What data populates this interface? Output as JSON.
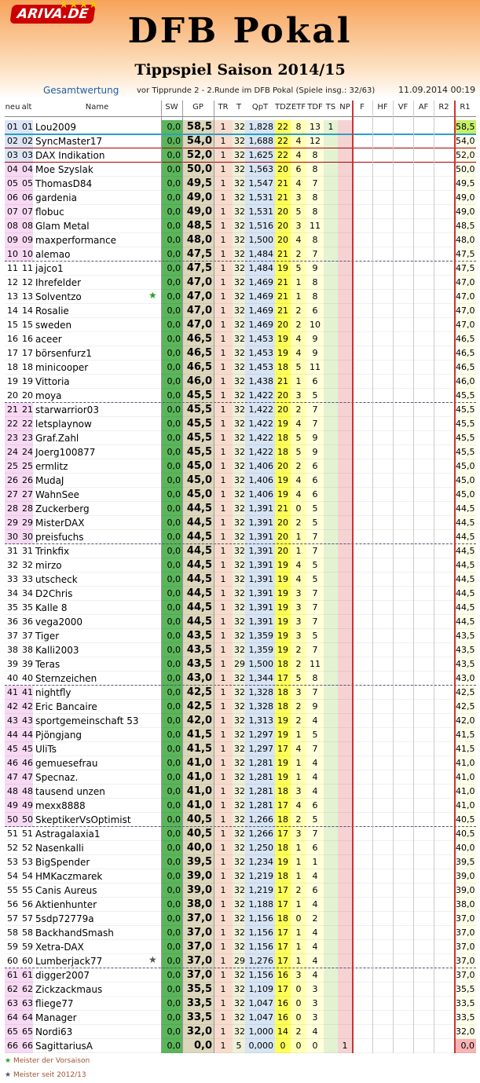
{
  "header": {
    "logo": "ARIVA.DE",
    "title": "DFB Pokal",
    "subtitle": "Tippspiel Saison 2014/15",
    "section": "Gesamtwertung",
    "round": "vor Tipprunde 2 - 2.Runde im DFB Pokal (Spiele insg.: 32/63)",
    "timestamp": "11.09.2014 00:19"
  },
  "table": {
    "columns": [
      "neu",
      "alt",
      "Name",
      "SW",
      "GP",
      "TR",
      "T",
      "QpT",
      "TDZ",
      "ETF",
      "TDF",
      "TS",
      "NP",
      "F",
      "HF",
      "VF",
      "AF",
      "R2",
      "R1"
    ],
    "rows": [
      [
        "01",
        "01",
        "Lou2009",
        "0,0",
        "58,5",
        "1",
        "32",
        "1,828",
        "22",
        "8",
        "13",
        "1",
        null,
        "58,5"
      ],
      [
        "02",
        "02",
        "SyncMaster17",
        "0,0",
        "54,0",
        "1",
        "32",
        "1,688",
        "22",
        "4",
        "12",
        null,
        null,
        "54,0"
      ],
      [
        "03",
        "03",
        "DAX Indikation",
        "0,0",
        "52,0",
        "1",
        "32",
        "1,625",
        "22",
        "4",
        "8",
        null,
        null,
        "52,0"
      ],
      [
        "04",
        "04",
        "Moe Szyslak",
        "0,0",
        "50,0",
        "1",
        "32",
        "1,563",
        "20",
        "6",
        "8",
        null,
        null,
        "50,0"
      ],
      [
        "05",
        "05",
        "ThomasD84",
        "0,0",
        "49,5",
        "1",
        "32",
        "1,547",
        "21",
        "4",
        "7",
        null,
        null,
        "49,5"
      ],
      [
        "06",
        "06",
        "gardenia",
        "0,0",
        "49,0",
        "1",
        "32",
        "1,531",
        "21",
        "3",
        "8",
        null,
        null,
        "49,0"
      ],
      [
        "07",
        "07",
        "flobuc",
        "0,0",
        "49,0",
        "1",
        "32",
        "1,531",
        "20",
        "5",
        "8",
        null,
        null,
        "49,0"
      ],
      [
        "08",
        "08",
        "Glam Metal",
        "0,0",
        "48,5",
        "1",
        "32",
        "1,516",
        "20",
        "3",
        "11",
        null,
        null,
        "48,5"
      ],
      [
        "09",
        "09",
        "maxperformance",
        "0,0",
        "48,0",
        "1",
        "32",
        "1,500",
        "20",
        "4",
        "8",
        null,
        null,
        "48,0"
      ],
      [
        "10",
        "10",
        "alemao",
        "0,0",
        "47,5",
        "1",
        "32",
        "1,484",
        "21",
        "2",
        "7",
        null,
        null,
        "47,5"
      ],
      [
        "11",
        "11",
        "jajco1",
        "0,0",
        "47,5",
        "1",
        "32",
        "1,484",
        "19",
        "5",
        "9",
        null,
        null,
        "47,5"
      ],
      [
        "12",
        "12",
        "Ihrefelder",
        "0,0",
        "47,0",
        "1",
        "32",
        "1,469",
        "21",
        "1",
        "8",
        null,
        null,
        "47,0"
      ],
      [
        "13",
        "13",
        "Solventzo",
        "0,0",
        "47,0",
        "1",
        "32",
        "1,469",
        "21",
        "1",
        "8",
        null,
        null,
        "47,0"
      ],
      [
        "14",
        "14",
        "Rosalie",
        "0,0",
        "47,0",
        "1",
        "32",
        "1,469",
        "21",
        "2",
        "6",
        null,
        null,
        "47,0"
      ],
      [
        "15",
        "15",
        "sweden",
        "0,0",
        "47,0",
        "1",
        "32",
        "1,469",
        "20",
        "2",
        "10",
        null,
        null,
        "47,0"
      ],
      [
        "16",
        "16",
        "aceer",
        "0,0",
        "46,5",
        "1",
        "32",
        "1,453",
        "19",
        "4",
        "9",
        null,
        null,
        "46,5"
      ],
      [
        "17",
        "17",
        "börsenfurz1",
        "0,0",
        "46,5",
        "1",
        "32",
        "1,453",
        "19",
        "4",
        "9",
        null,
        null,
        "46,5"
      ],
      [
        "18",
        "18",
        "minicooper",
        "0,0",
        "46,5",
        "1",
        "32",
        "1,453",
        "18",
        "5",
        "11",
        null,
        null,
        "46,5"
      ],
      [
        "19",
        "19",
        "Vittoria",
        "0,0",
        "46,0",
        "1",
        "32",
        "1,438",
        "21",
        "1",
        "6",
        null,
        null,
        "46,0"
      ],
      [
        "20",
        "20",
        "moya",
        "0,0",
        "45,5",
        "1",
        "32",
        "1,422",
        "20",
        "3",
        "5",
        null,
        null,
        "45,5"
      ],
      [
        "21",
        "21",
        "starwarrior03",
        "0,0",
        "45,5",
        "1",
        "32",
        "1,422",
        "20",
        "2",
        "7",
        null,
        null,
        "45,5"
      ],
      [
        "22",
        "22",
        "letsplaynow",
        "0,0",
        "45,5",
        "1",
        "32",
        "1,422",
        "19",
        "4",
        "7",
        null,
        null,
        "45,5"
      ],
      [
        "23",
        "23",
        "Graf.Zahl",
        "0,0",
        "45,5",
        "1",
        "32",
        "1,422",
        "18",
        "5",
        "9",
        null,
        null,
        "45,5"
      ],
      [
        "24",
        "24",
        "Joerg100877",
        "0,0",
        "45,5",
        "1",
        "32",
        "1,422",
        "18",
        "5",
        "9",
        null,
        null,
        "45,5"
      ],
      [
        "25",
        "25",
        "ermlitz",
        "0,0",
        "45,0",
        "1",
        "32",
        "1,406",
        "20",
        "2",
        "6",
        null,
        null,
        "45,0"
      ],
      [
        "26",
        "26",
        "MudaJ",
        "0,0",
        "45,0",
        "1",
        "32",
        "1,406",
        "19",
        "4",
        "6",
        null,
        null,
        "45,0"
      ],
      [
        "27",
        "27",
        "WahnSee",
        "0,0",
        "45,0",
        "1",
        "32",
        "1,406",
        "19",
        "4",
        "6",
        null,
        null,
        "45,0"
      ],
      [
        "28",
        "28",
        "Zuckerberg",
        "0,0",
        "44,5",
        "1",
        "32",
        "1,391",
        "21",
        "0",
        "5",
        null,
        null,
        "44,5"
      ],
      [
        "29",
        "29",
        "MisterDAX",
        "0,0",
        "44,5",
        "1",
        "32",
        "1,391",
        "20",
        "2",
        "5",
        null,
        null,
        "44,5"
      ],
      [
        "30",
        "30",
        "preisfuchs",
        "0,0",
        "44,5",
        "1",
        "32",
        "1,391",
        "20",
        "1",
        "7",
        null,
        null,
        "44,5"
      ],
      [
        "31",
        "31",
        "Trinkfix",
        "0,0",
        "44,5",
        "1",
        "32",
        "1,391",
        "20",
        "1",
        "7",
        null,
        null,
        "44,5"
      ],
      [
        "32",
        "32",
        "mirzo",
        "0,0",
        "44,5",
        "1",
        "32",
        "1,391",
        "19",
        "4",
        "5",
        null,
        null,
        "44,5"
      ],
      [
        "33",
        "33",
        "utscheck",
        "0,0",
        "44,5",
        "1",
        "32",
        "1,391",
        "19",
        "4",
        "5",
        null,
        null,
        "44,5"
      ],
      [
        "34",
        "34",
        "D2Chris",
        "0,0",
        "44,5",
        "1",
        "32",
        "1,391",
        "19",
        "3",
        "7",
        null,
        null,
        "44,5"
      ],
      [
        "35",
        "35",
        "Kalle 8",
        "0,0",
        "44,5",
        "1",
        "32",
        "1,391",
        "19",
        "3",
        "7",
        null,
        null,
        "44,5"
      ],
      [
        "36",
        "36",
        "vega2000",
        "0,0",
        "44,5",
        "1",
        "32",
        "1,391",
        "19",
        "3",
        "7",
        null,
        null,
        "44,5"
      ],
      [
        "37",
        "37",
        "Tiger",
        "0,0",
        "43,5",
        "1",
        "32",
        "1,359",
        "19",
        "3",
        "5",
        null,
        null,
        "43,5"
      ],
      [
        "38",
        "38",
        "Kalli2003",
        "0,0",
        "43,5",
        "1",
        "32",
        "1,359",
        "19",
        "2",
        "7",
        null,
        null,
        "43,5"
      ],
      [
        "39",
        "39",
        "Teras",
        "0,0",
        "43,5",
        "1",
        "29",
        "1,500",
        "18",
        "2",
        "11",
        null,
        null,
        "43,5"
      ],
      [
        "40",
        "40",
        "Sternzeichen",
        "0,0",
        "43,0",
        "1",
        "32",
        "1,344",
        "17",
        "5",
        "8",
        null,
        null,
        "43,0"
      ],
      [
        "41",
        "41",
        "nightfly",
        "0,0",
        "42,5",
        "1",
        "32",
        "1,328",
        "18",
        "3",
        "7",
        null,
        null,
        "42,5"
      ],
      [
        "42",
        "42",
        "Eric Bancaire",
        "0,0",
        "42,5",
        "1",
        "32",
        "1,328",
        "18",
        "2",
        "9",
        null,
        null,
        "42,5"
      ],
      [
        "43",
        "43",
        "sportgemeinschaft 53",
        "0,0",
        "42,0",
        "1",
        "32",
        "1,313",
        "19",
        "2",
        "4",
        null,
        null,
        "42,0"
      ],
      [
        "44",
        "44",
        "Pjöngjang",
        "0,0",
        "41,5",
        "1",
        "32",
        "1,297",
        "19",
        "1",
        "5",
        null,
        null,
        "41,5"
      ],
      [
        "45",
        "45",
        "UliTs",
        "0,0",
        "41,5",
        "1",
        "32",
        "1,297",
        "17",
        "4",
        "7",
        null,
        null,
        "41,5"
      ],
      [
        "46",
        "46",
        "gemuesefrau",
        "0,0",
        "41,0",
        "1",
        "32",
        "1,281",
        "19",
        "1",
        "4",
        null,
        null,
        "41,0"
      ],
      [
        "47",
        "47",
        "Specnaz.",
        "0,0",
        "41,0",
        "1",
        "32",
        "1,281",
        "19",
        "1",
        "4",
        null,
        null,
        "41,0"
      ],
      [
        "48",
        "48",
        "tausend unzen",
        "0,0",
        "41,0",
        "1",
        "32",
        "1,281",
        "18",
        "3",
        "4",
        null,
        null,
        "41,0"
      ],
      [
        "49",
        "49",
        "mexx8888",
        "0,0",
        "41,0",
        "1",
        "32",
        "1,281",
        "17",
        "4",
        "6",
        null,
        null,
        "41,0"
      ],
      [
        "50",
        "50",
        "SkeptikerVsOptimist",
        "0,0",
        "40,5",
        "1",
        "32",
        "1,266",
        "18",
        "2",
        "5",
        null,
        null,
        "40,5"
      ],
      [
        "51",
        "51",
        "Astragalaxia1",
        "0,0",
        "40,5",
        "1",
        "32",
        "1,266",
        "17",
        "3",
        "7",
        null,
        null,
        "40,5"
      ],
      [
        "52",
        "52",
        "Nasenkalli",
        "0,0",
        "40,0",
        "1",
        "32",
        "1,250",
        "18",
        "1",
        "6",
        null,
        null,
        "40,0"
      ],
      [
        "53",
        "53",
        "BigSpender",
        "0,0",
        "39,5",
        "1",
        "32",
        "1,234",
        "19",
        "1",
        "1",
        null,
        null,
        "39,5"
      ],
      [
        "54",
        "54",
        "HMKaczmarek",
        "0,0",
        "39,0",
        "1",
        "32",
        "1,219",
        "18",
        "1",
        "4",
        null,
        null,
        "39,0"
      ],
      [
        "55",
        "55",
        "Canis Aureus",
        "0,0",
        "39,0",
        "1",
        "32",
        "1,219",
        "17",
        "2",
        "6",
        null,
        null,
        "39,0"
      ],
      [
        "56",
        "56",
        "Aktienhunter",
        "0,0",
        "38,0",
        "1",
        "32",
        "1,188",
        "17",
        "1",
        "4",
        null,
        null,
        "38,0"
      ],
      [
        "57",
        "57",
        "5sdp72779a",
        "0,0",
        "37,0",
        "1",
        "32",
        "1,156",
        "18",
        "0",
        "2",
        null,
        null,
        "37,0"
      ],
      [
        "58",
        "58",
        "BackhandSmash",
        "0,0",
        "37,0",
        "1",
        "32",
        "1,156",
        "17",
        "1",
        "4",
        null,
        null,
        "37,0"
      ],
      [
        "59",
        "59",
        "Xetra-DAX",
        "0,0",
        "37,0",
        "1",
        "32",
        "1,156",
        "17",
        "1",
        "4",
        null,
        null,
        "37,0"
      ],
      [
        "60",
        "60",
        "Lumberjack77",
        "0,0",
        "37,0",
        "1",
        "29",
        "1,276",
        "17",
        "1",
        "4",
        null,
        null,
        "37,0"
      ],
      [
        "61",
        "61",
        "digger2007",
        "0,0",
        "37,0",
        "1",
        "32",
        "1,156",
        "16",
        "3",
        "4",
        null,
        null,
        "37,0"
      ],
      [
        "62",
        "62",
        "Zickzackmaus",
        "0,0",
        "35,5",
        "1",
        "32",
        "1,109",
        "17",
        "0",
        "3",
        null,
        null,
        "35,5"
      ],
      [
        "63",
        "63",
        "fliege77",
        "0,0",
        "33,5",
        "1",
        "32",
        "1,047",
        "16",
        "0",
        "3",
        null,
        null,
        "33,5"
      ],
      [
        "64",
        "64",
        "Manager",
        "0,0",
        "33,5",
        "1",
        "32",
        "1,047",
        "16",
        "0",
        "3",
        null,
        null,
        "33,5"
      ],
      [
        "65",
        "65",
        "Nordi63",
        "0,0",
        "32,0",
        "1",
        "32",
        "1,000",
        "14",
        "2",
        "4",
        null,
        null,
        "32,0"
      ],
      [
        "66",
        "66",
        "SagittariusA",
        "0,0",
        "0,0",
        "1",
        "5",
        "0,000",
        "0",
        "0",
        "0",
        null,
        "1",
        "0,0"
      ]
    ]
  },
  "footer": {
    "legend": [
      "Meister der Vorsaison",
      "Meister seit 2012/13"
    ]
  }
}
